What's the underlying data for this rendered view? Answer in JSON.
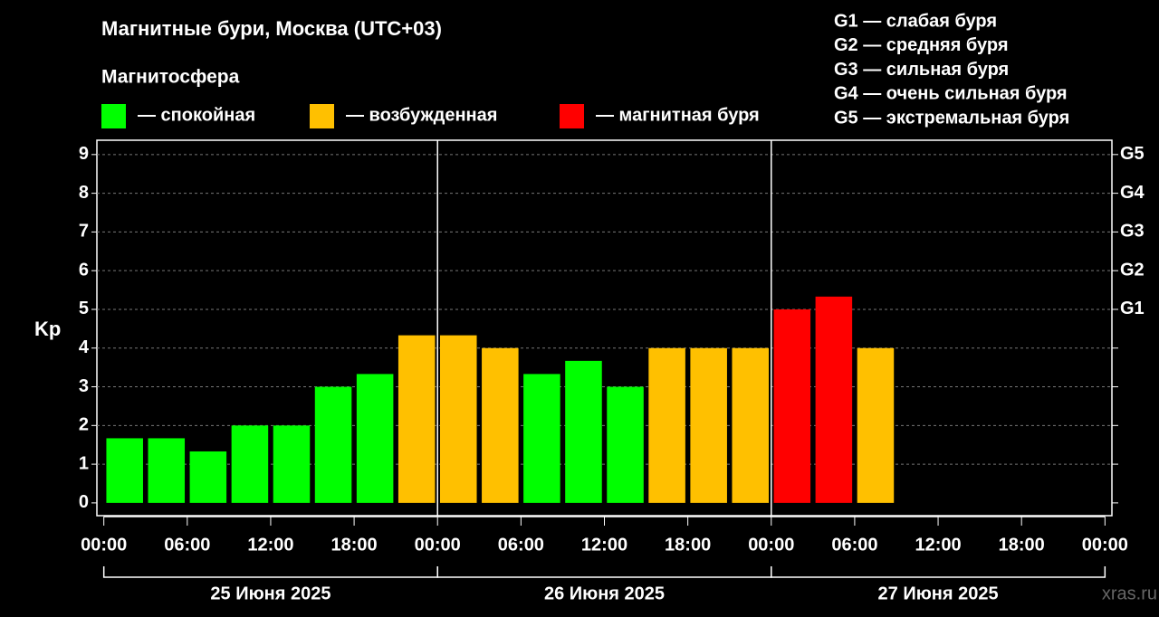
{
  "chart_data": {
    "type": "bar",
    "title": "Магнитные бури, Москва (UTC+03)",
    "legend_title": "Магнитосфера",
    "y_label": "Kp",
    "storm_scale": [
      "G1 — слабая буря",
      "G2 — средняя буря",
      "G3 — сильная буря",
      "G4 — очень сильная буря",
      "G5 — экстремальная буря"
    ],
    "source": "xras.ru",
    "x": [
      1.5,
      4.5,
      7.5,
      10.5,
      13.5,
      16.5,
      19.5,
      22.5,
      25.5,
      28.5,
      31.5,
      34.5,
      37.5,
      40.5,
      43.5,
      46.5,
      49.5,
      52.5,
      55.5
    ],
    "series": [
      {
        "name": "— спокойная",
        "color": "#00ff00",
        "values": [
          1.67,
          1.67,
          1.33,
          2,
          2,
          3,
          3.33,
          null,
          null,
          null,
          3.33,
          3.67,
          3,
          null,
          null,
          null,
          null,
          null,
          null
        ]
      },
      {
        "name": "— возбужденная",
        "color": "#ffc000",
        "values": [
          null,
          null,
          null,
          null,
          null,
          null,
          null,
          4.33,
          4.33,
          4,
          null,
          null,
          null,
          4,
          4,
          4,
          null,
          null,
          4
        ]
      },
      {
        "name": "— магнитная буря",
        "color": "#ff0000",
        "values": [
          null,
          null,
          null,
          null,
          null,
          null,
          null,
          null,
          null,
          null,
          null,
          null,
          null,
          null,
          null,
          null,
          5,
          5.33,
          null
        ]
      }
    ],
    "xlim": [
      -0.5,
      72.5
    ],
    "xticks": [
      {
        "value": 0,
        "label": "00:00"
      },
      {
        "value": 6,
        "label": "06:00"
      },
      {
        "value": 12,
        "label": "12:00"
      },
      {
        "value": 18,
        "label": "18:00"
      },
      {
        "value": 24,
        "label": "00:00"
      },
      {
        "value": 30,
        "label": "06:00"
      },
      {
        "value": 36,
        "label": "12:00"
      },
      {
        "value": 42,
        "label": "18:00"
      },
      {
        "value": 48,
        "label": "00:00"
      },
      {
        "value": 54,
        "label": "06:00"
      },
      {
        "value": 60,
        "label": "12:00"
      },
      {
        "value": 66,
        "label": "18:00"
      },
      {
        "value": 72,
        "label": "00:00"
      }
    ],
    "day_labels": [
      "25 Июня 2025",
      "26 Июня 2025",
      "27 Июня 2025"
    ],
    "ylim": [
      -0.33,
      9.37
    ],
    "yticks": [
      0,
      1,
      2,
      3,
      4,
      5,
      6,
      7,
      8,
      9
    ],
    "y2ticks": [
      {
        "value": 5,
        "label": "G1"
      },
      {
        "value": 6,
        "label": "G2"
      },
      {
        "value": 7,
        "label": "G3"
      },
      {
        "value": 8,
        "label": "G4"
      },
      {
        "value": 9,
        "label": "G5"
      }
    ],
    "grid": true
  }
}
